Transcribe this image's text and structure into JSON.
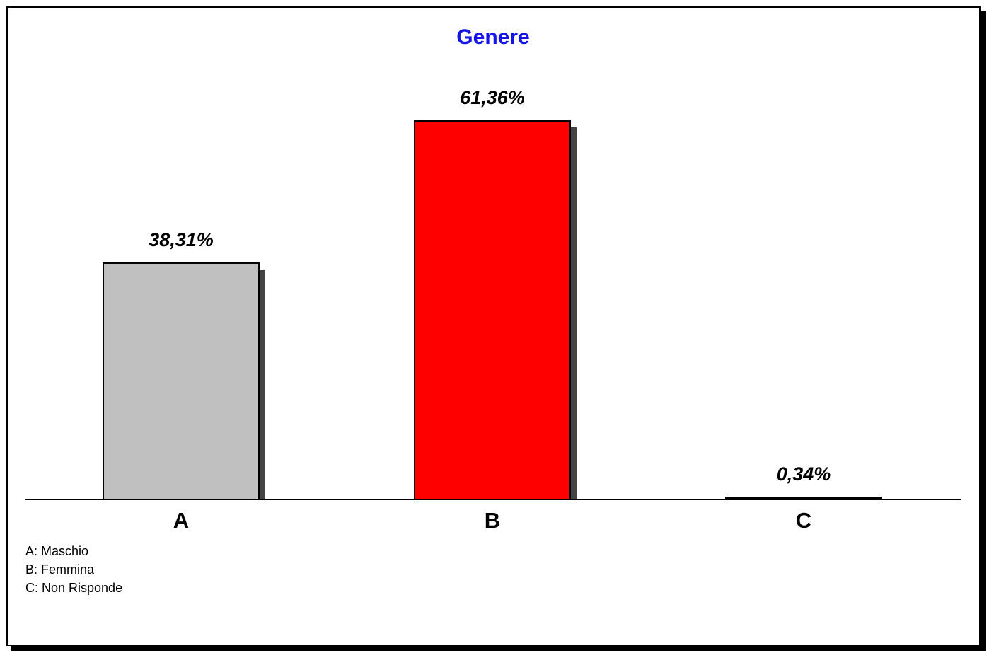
{
  "chart_data": {
    "type": "bar",
    "title": "Genere",
    "categories": [
      "A",
      "B",
      "C"
    ],
    "values": [
      38.31,
      61.36,
      0.34
    ],
    "value_labels": [
      "38,31%",
      "61,36%",
      "0,34%"
    ],
    "colors": [
      "#C0C0C0",
      "#FF0000",
      "#000000"
    ],
    "title_color": "#1414E6",
    "ylim": [
      0,
      61.36
    ],
    "grid": false,
    "legend_placement": "bottom-left",
    "legend": [
      "A: Maschio",
      "B: Femmina",
      "C: Non Risponde"
    ]
  }
}
